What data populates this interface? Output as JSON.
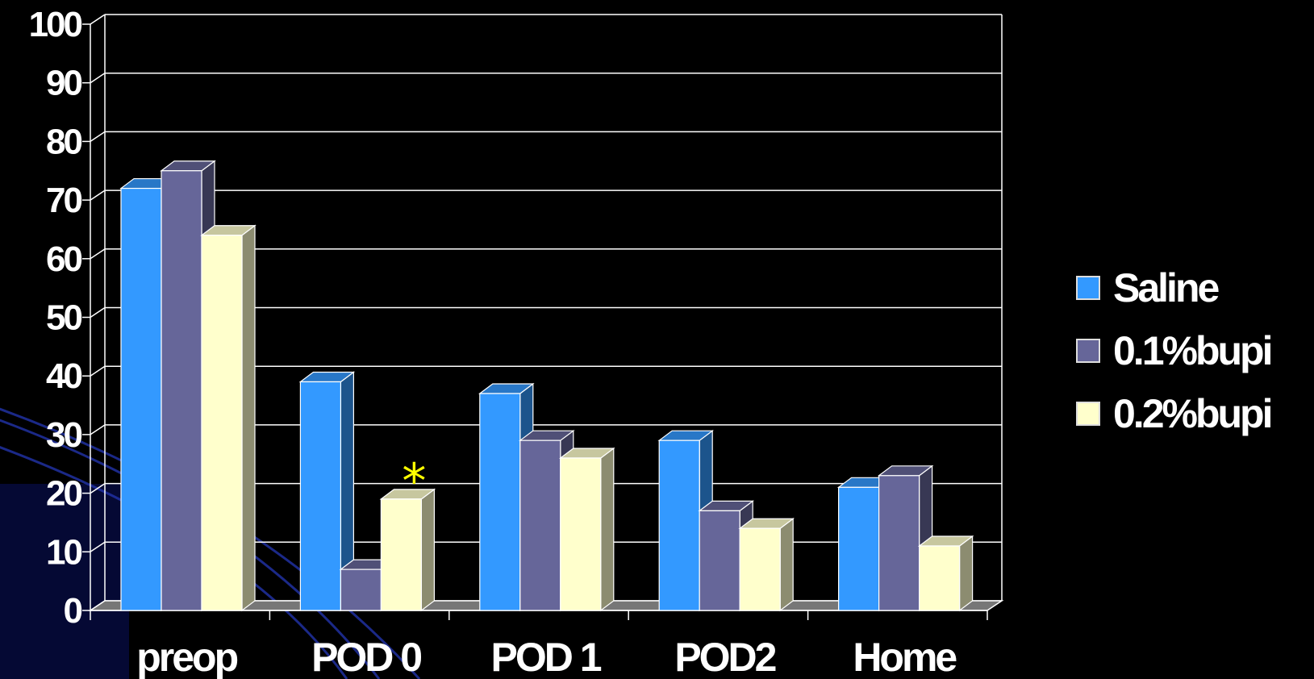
{
  "chart_data": {
    "type": "bar",
    "categories": [
      "preop",
      "POD 0",
      "POD 1",
      "POD2",
      "Home"
    ],
    "series": [
      {
        "name": "Saline",
        "values": [
          72,
          39,
          37,
          29,
          21
        ]
      },
      {
        "name": "0.1%bupi",
        "values": [
          75,
          7,
          29,
          17,
          23
        ]
      },
      {
        "name": "0.2%bupi",
        "values": [
          64,
          19,
          26,
          14,
          11
        ]
      }
    ],
    "ylim": [
      0,
      100
    ],
    "yticks": [
      "0",
      "10",
      "20",
      "30",
      "40",
      "50",
      "60",
      "70",
      "80",
      "90",
      "100"
    ],
    "grid": true,
    "legend_position": "right",
    "annotations": [
      {
        "category": "POD 0",
        "series": "0.2%bupi",
        "text": "*"
      }
    ],
    "title": "",
    "xlabel": "",
    "ylabel": ""
  },
  "colors": {
    "background": "#000000",
    "saline": "#3399ff",
    "bupi_01": "#666699",
    "bupi_02": "#ffffcc",
    "annotation": "#ffff00",
    "background_arcs": "#2233aa"
  }
}
